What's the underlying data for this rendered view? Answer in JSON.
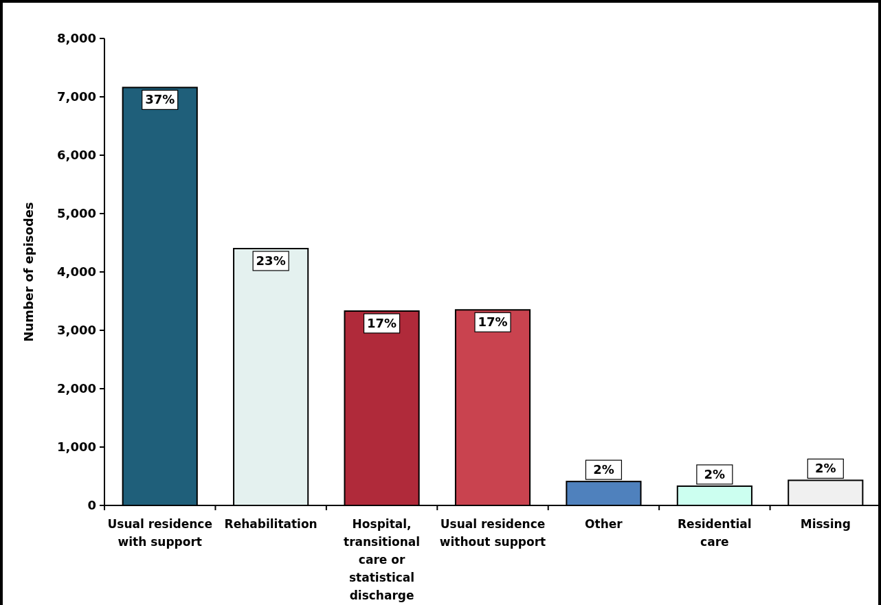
{
  "chart_data": {
    "type": "bar",
    "ylabel": "Number of episodes",
    "categories": [
      "Usual residence with support",
      "Rehabilitation",
      "Hospital, transitional care or statistical discharge",
      "Usual residence without support",
      "Other",
      "Residential care",
      "Missing"
    ],
    "values": [
      7160,
      4400,
      3330,
      3350,
      410,
      330,
      430
    ],
    "annotations": [
      {
        "text": "37%",
        "x": "Usual residence with support",
        "y": 7160
      },
      {
        "text": "23%",
        "x": "Rehabilitation",
        "y": 4400
      },
      {
        "text": "17%",
        "x": "Hospital, transitional care or statistical discharge",
        "y": 3330
      },
      {
        "text": "17%",
        "x": "Usual residence without support",
        "y": 3350
      },
      {
        "text": "2%",
        "x": "Other",
        "y": 410
      },
      {
        "text": "2%",
        "x": "Residential care",
        "y": 330
      },
      {
        "text": "2%",
        "x": "Missing",
        "y": 430
      }
    ],
    "colors": [
      "#1f5f7a",
      "#e4f1ef",
      "#b02a3a",
      "#c9434f",
      "#4f81bd",
      "#ccfff0",
      "#f0f0f0"
    ],
    "ylim": [
      0,
      8000
    ],
    "yticks": [
      {
        "value": 0,
        "label": "0"
      },
      {
        "value": 1000,
        "label": "1,000"
      },
      {
        "value": 2000,
        "label": "2,000"
      },
      {
        "value": 3000,
        "label": "3,000"
      },
      {
        "value": 4000,
        "label": "4,000"
      },
      {
        "value": 5000,
        "label": "5,000"
      },
      {
        "value": 6000,
        "label": "6,000"
      },
      {
        "value": 7000,
        "label": "7,000"
      },
      {
        "value": 8000,
        "label": "8,000"
      }
    ],
    "grid": false
  }
}
